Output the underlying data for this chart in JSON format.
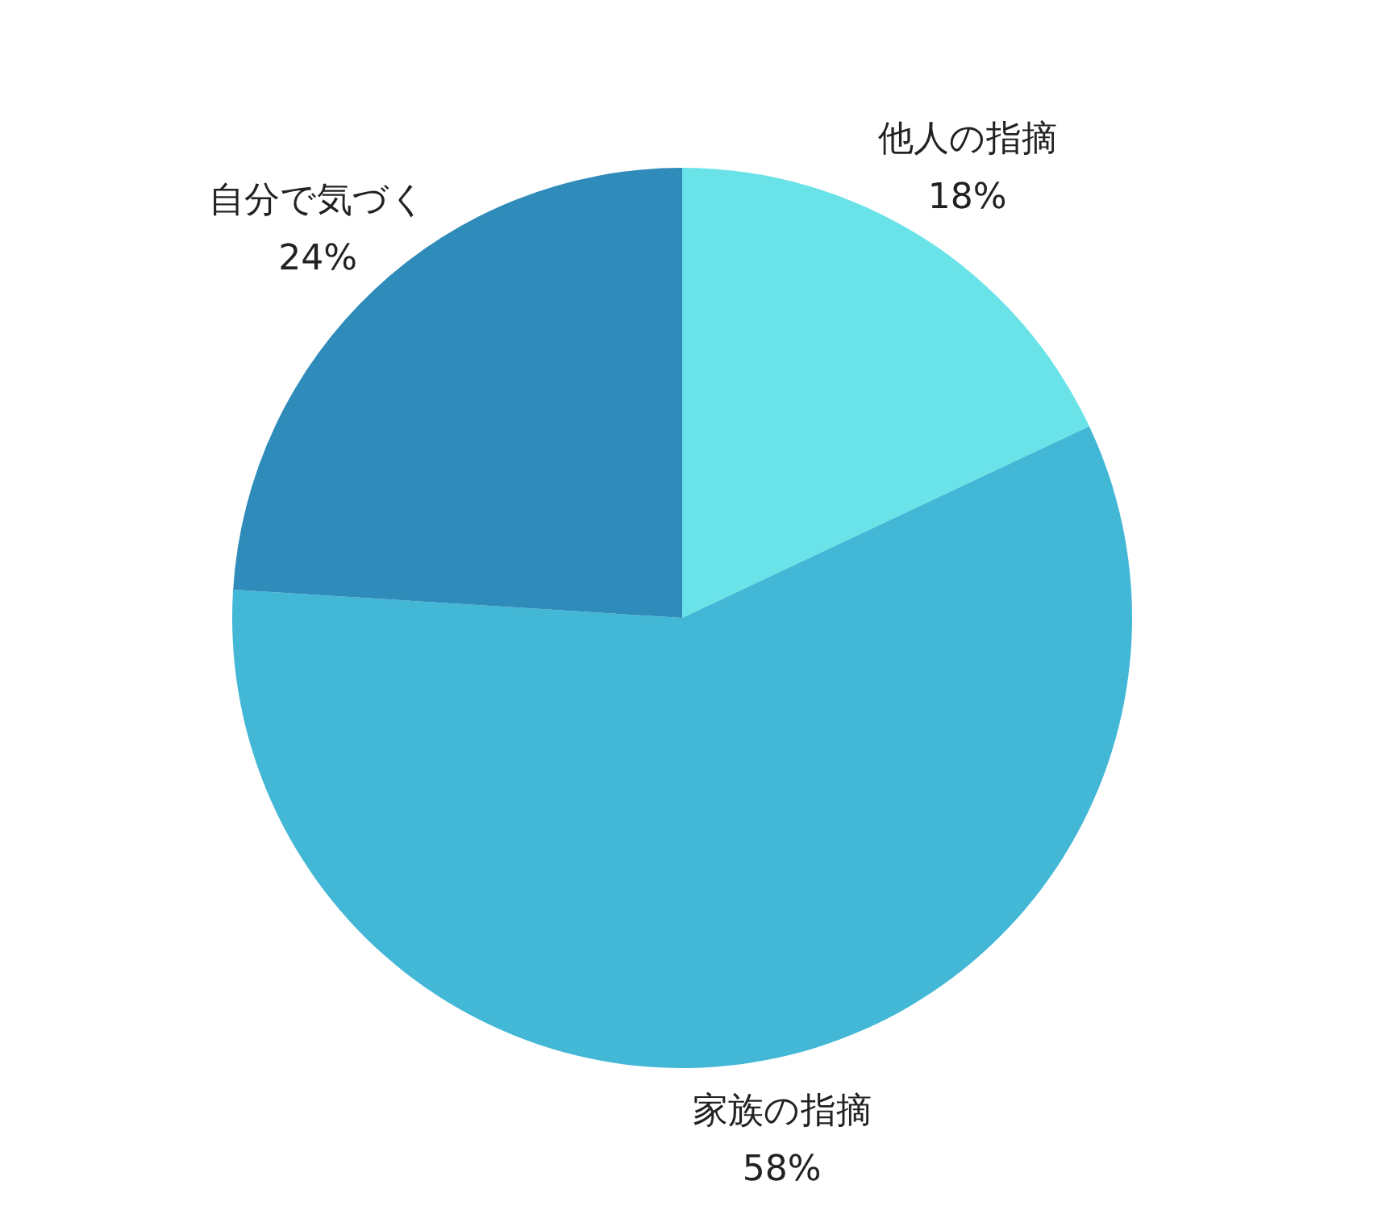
{
  "chart_data": {
    "type": "pie",
    "categories": [
      "他人の指摘",
      "家族の指摘",
      "自分で気づく"
    ],
    "values": [
      18,
      58,
      24
    ],
    "value_labels": [
      "18%",
      "58%",
      "24%"
    ],
    "colors": [
      "#6ae3e8",
      "#42b7d6",
      "#2e8bba"
    ]
  }
}
